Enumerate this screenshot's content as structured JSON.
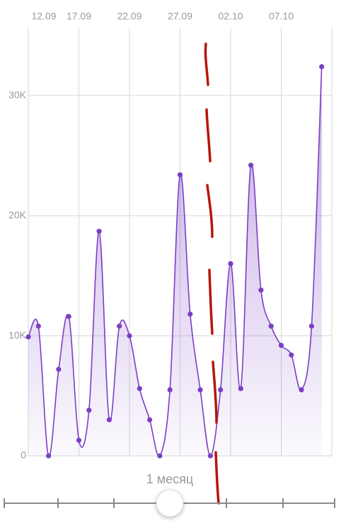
{
  "chart_data": {
    "type": "line",
    "categories": [
      "12.09",
      null,
      null,
      null,
      null,
      "17.09",
      null,
      null,
      null,
      null,
      "22.09",
      null,
      null,
      null,
      null,
      "27.09",
      null,
      null,
      null,
      null,
      "02.10",
      null,
      null,
      null,
      null,
      "07.10",
      null,
      null,
      null,
      null
    ],
    "series": [
      {
        "color": "#7b3fc4",
        "values": [
          9900,
          10800,
          0,
          7200,
          11600,
          1300,
          3800,
          18700,
          3000,
          10800,
          10000,
          5600,
          3000,
          0,
          5500,
          23400,
          11800,
          5500,
          0,
          5500,
          16000,
          5600,
          24200,
          13800,
          10800,
          9200,
          8400,
          5500,
          10800,
          32400
        ]
      }
    ],
    "ylim": [
      0,
      35600
    ],
    "yticks": [
      0,
      {
        "value": 10000,
        "label": "10K"
      },
      {
        "value": 20000,
        "label": "20K"
      },
      {
        "value": 30000,
        "label": "30K"
      }
    ],
    "grid": true
  },
  "slider": {
    "label": "1 месяц"
  }
}
